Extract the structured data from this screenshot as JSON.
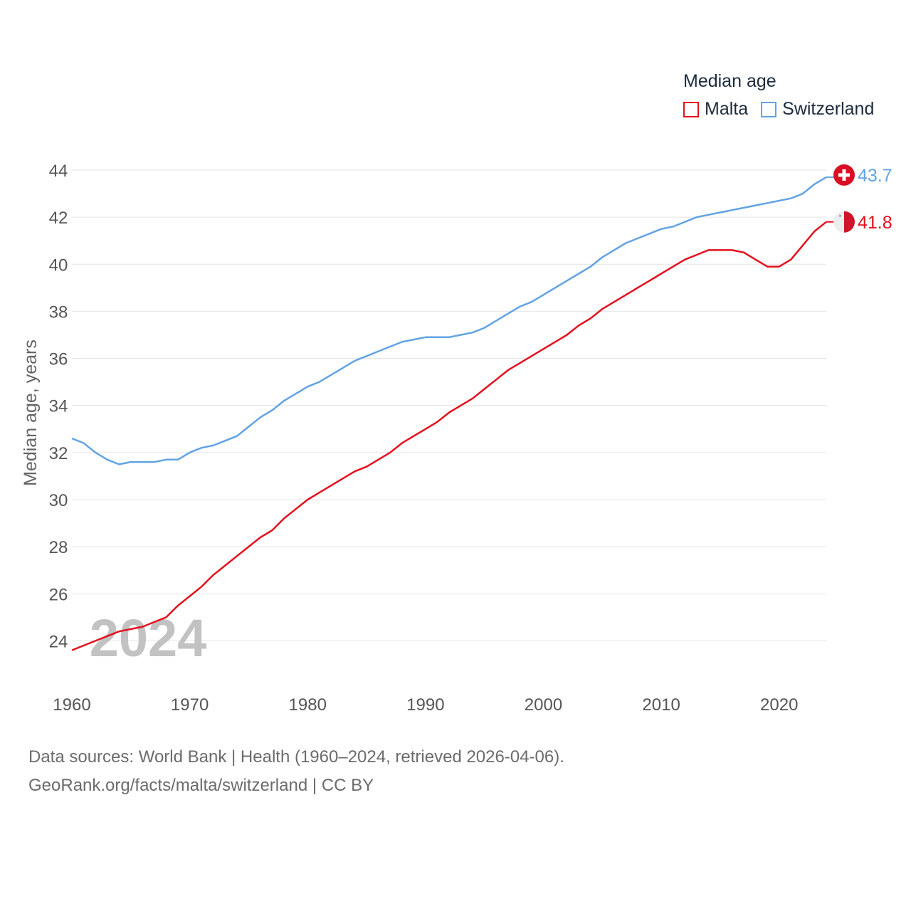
{
  "chart_data": {
    "type": "line",
    "title": "Median age",
    "xlabel": "",
    "ylabel": "Median age, years",
    "xlim": [
      1960,
      2024
    ],
    "ylim": [
      22.5,
      44
    ],
    "yticks": [
      24,
      26,
      28,
      30,
      32,
      34,
      36,
      38,
      40,
      42,
      44
    ],
    "xticks": [
      1960,
      1970,
      1980,
      1990,
      2000,
      2010,
      2020
    ],
    "grid": true,
    "legend_position": "top-right",
    "year_watermark": "2024",
    "x": [
      1960,
      1961,
      1962,
      1963,
      1964,
      1965,
      1966,
      1967,
      1968,
      1969,
      1970,
      1971,
      1972,
      1973,
      1974,
      1975,
      1976,
      1977,
      1978,
      1979,
      1980,
      1981,
      1982,
      1983,
      1984,
      1985,
      1986,
      1987,
      1988,
      1989,
      1990,
      1991,
      1992,
      1993,
      1994,
      1995,
      1996,
      1997,
      1998,
      1999,
      2000,
      2001,
      2002,
      2003,
      2004,
      2005,
      2006,
      2007,
      2008,
      2009,
      2010,
      2011,
      2012,
      2013,
      2014,
      2015,
      2016,
      2017,
      2018,
      2019,
      2020,
      2021,
      2022,
      2023,
      2024
    ],
    "series": [
      {
        "name": "Malta",
        "color": "#e3101d",
        "end_label": "41.8",
        "values": [
          23.6,
          23.8,
          24.0,
          24.2,
          24.4,
          24.5,
          24.6,
          24.8,
          25.0,
          25.5,
          25.9,
          26.3,
          26.8,
          27.2,
          27.6,
          28.0,
          28.4,
          28.7,
          29.2,
          29.6,
          30.0,
          30.3,
          30.6,
          30.9,
          31.2,
          31.4,
          31.7,
          32.0,
          32.4,
          32.7,
          33.0,
          33.3,
          33.7,
          34.0,
          34.3,
          34.7,
          35.1,
          35.5,
          35.8,
          36.1,
          36.4,
          36.7,
          37.0,
          37.4,
          37.7,
          38.1,
          38.4,
          38.7,
          39.0,
          39.3,
          39.6,
          39.9,
          40.2,
          40.4,
          40.6,
          40.6,
          40.6,
          40.5,
          40.2,
          39.9,
          39.9,
          40.2,
          40.8,
          41.4,
          41.8
        ]
      },
      {
        "name": "Switzerland",
        "color": "#62a3e3",
        "end_label": "43.7",
        "values": [
          32.6,
          32.4,
          32.0,
          31.7,
          31.5,
          31.6,
          31.6,
          31.6,
          31.7,
          31.7,
          32.0,
          32.2,
          32.3,
          32.5,
          32.7,
          33.1,
          33.5,
          33.8,
          34.2,
          34.5,
          34.8,
          35.0,
          35.3,
          35.6,
          35.9,
          36.1,
          36.3,
          36.5,
          36.7,
          36.8,
          36.9,
          36.9,
          36.9,
          37.0,
          37.1,
          37.3,
          37.6,
          37.9,
          38.2,
          38.4,
          38.7,
          39.0,
          39.3,
          39.6,
          39.9,
          40.3,
          40.6,
          40.9,
          41.1,
          41.3,
          41.5,
          41.6,
          41.8,
          42.0,
          42.1,
          42.2,
          42.3,
          42.4,
          42.5,
          42.6,
          42.7,
          42.8,
          43.0,
          43.4,
          43.7
        ]
      }
    ]
  },
  "legend": {
    "title": "Median age",
    "items": [
      {
        "label": "Malta",
        "color": "#e3101d"
      },
      {
        "label": "Switzerland",
        "color": "#62a3e3"
      }
    ]
  },
  "footer": {
    "sources": "Data sources: World Bank | Health (1960–2024, retrieved 2026-04-06).",
    "credit": "GeoRank.org/facts/malta/switzerland | CC BY"
  },
  "flags": {
    "malta_icon": "malta-flag-icon",
    "switzerland_icon": "switzerland-flag-icon"
  }
}
